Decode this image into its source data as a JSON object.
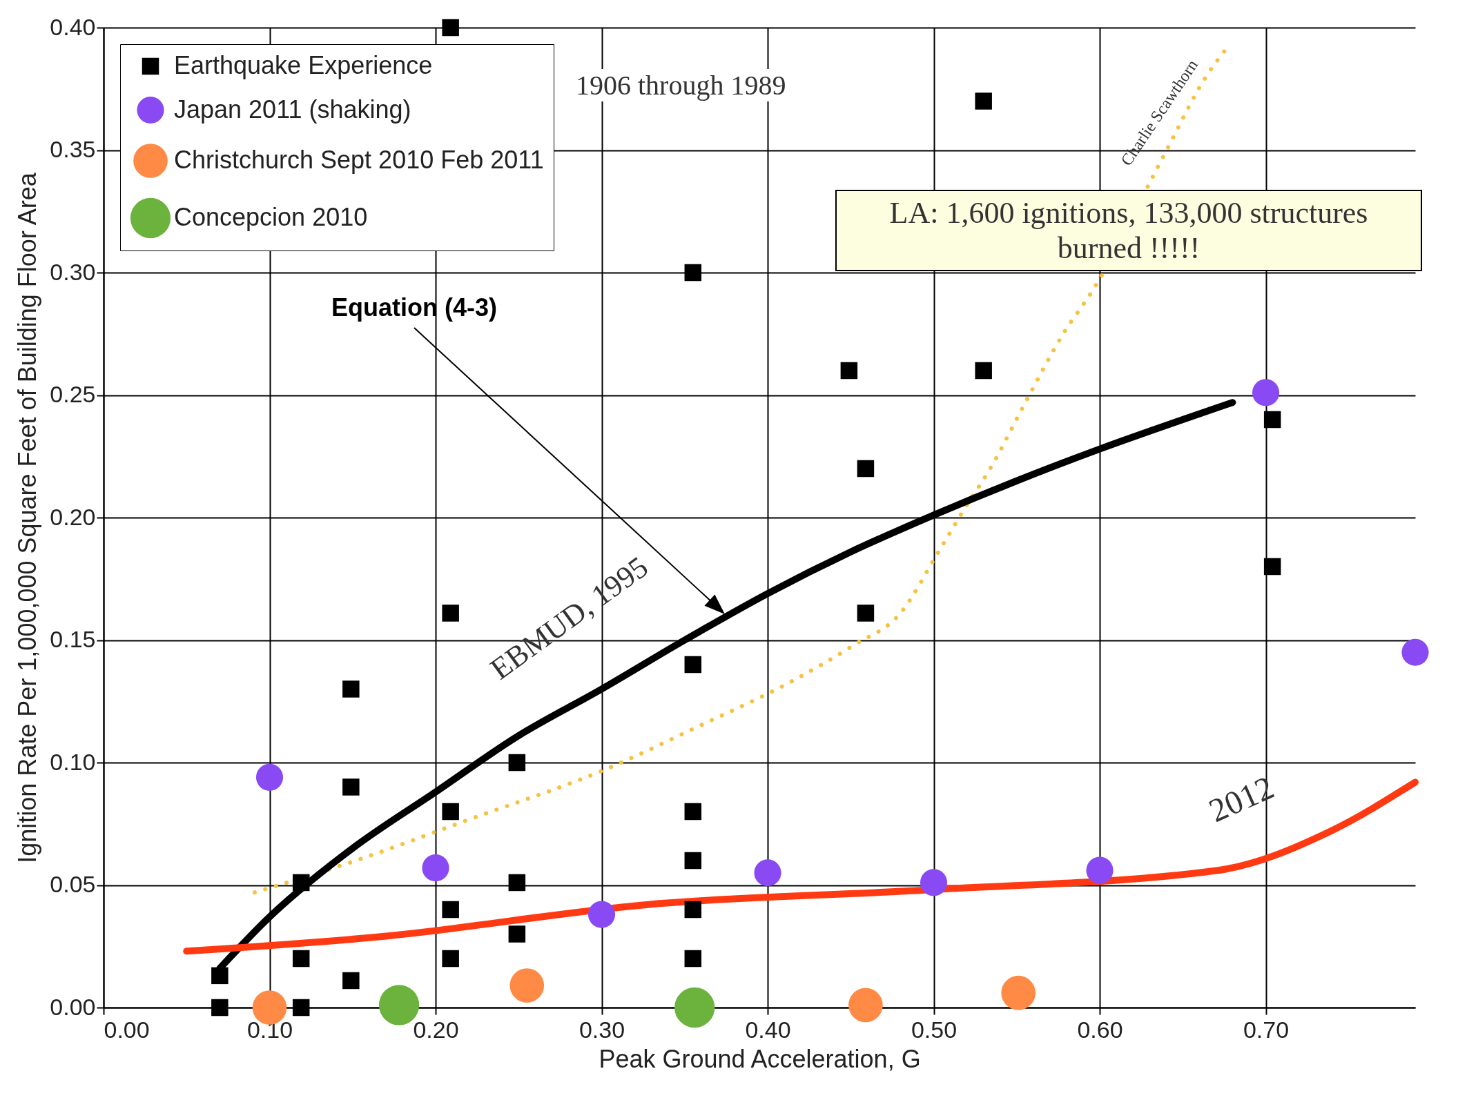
{
  "chart_data": {
    "type": "scatter",
    "xlabel": "Peak Ground Acceleration, G",
    "ylabel": "Ignition Rate Per 1,000,000 Square Feet of Building Floor Area",
    "xlim": [
      0,
      0.79
    ],
    "xticks": [
      {
        "value": 0,
        "label": "0.00"
      },
      {
        "value": 0.1,
        "label": "0.10"
      },
      {
        "value": 0.2,
        "label": "0.20"
      },
      {
        "value": 0.3,
        "label": "0.30"
      },
      {
        "value": 0.4,
        "label": "0.40"
      },
      {
        "value": 0.5,
        "label": "0.50"
      },
      {
        "value": 0.6,
        "label": "0.60"
      },
      {
        "value": 0.7,
        "label": "0.70"
      }
    ],
    "ylim": [
      0,
      0.4
    ],
    "yticks": [
      {
        "value": 0,
        "label": "0.00"
      },
      {
        "value": 0.05,
        "label": "0.05"
      },
      {
        "value": 0.1,
        "label": "0.10"
      },
      {
        "value": 0.15,
        "label": "0.15"
      },
      {
        "value": 0.2,
        "label": "0.20"
      },
      {
        "value": 0.25,
        "label": "0.25"
      },
      {
        "value": 0.3,
        "label": "0.30"
      },
      {
        "value": 0.35,
        "label": "0.35"
      },
      {
        "value": 0.4,
        "label": "0.40"
      }
    ],
    "grid": true,
    "legend": "top left",
    "series": [
      {
        "type": "line",
        "line_style": "dotted",
        "color": "#f5c242",
        "x": [
          0.091,
          0.152,
          0.217,
          0.305,
          0.359,
          0.414,
          0.452,
          0.48,
          0.502,
          0.518,
          0.534,
          0.556,
          0.578,
          0.596,
          0.638,
          0.665,
          0.677
        ],
        "values": [
          0.047,
          0.06,
          0.076,
          0.098,
          0.115,
          0.133,
          0.148,
          0.161,
          0.185,
          0.203,
          0.22,
          0.248,
          0.275,
          0.293,
          0.347,
          0.381,
          0.392
        ]
      },
      {
        "type": "line",
        "line_style": "solid",
        "color": "#000000",
        "x": [
          0.07,
          0.1,
          0.15,
          0.2,
          0.25,
          0.3,
          0.35,
          0.4,
          0.45,
          0.5,
          0.55,
          0.6,
          0.65,
          0.68
        ],
        "values": [
          0.016,
          0.037,
          0.065,
          0.088,
          0.111,
          0.13,
          0.15,
          0.169,
          0.186,
          0.201,
          0.215,
          0.228,
          0.24,
          0.247
        ]
      },
      {
        "type": "line",
        "line_style": "solid",
        "color": "#ff3a12",
        "x": [
          0.05,
          0.168,
          0.327,
          0.496,
          0.671,
          0.739,
          0.79
        ],
        "values": [
          0.023,
          0.029,
          0.042,
          0.048,
          0.056,
          0.072,
          0.092
        ]
      },
      {
        "marker": "square",
        "name": "Earthquake Experience",
        "color": "#000000",
        "x": [
          0.07,
          0.07,
          0.119,
          0.119,
          0.119,
          0.149,
          0.149,
          0.149,
          0.209,
          0.209,
          0.209,
          0.209,
          0.209,
          0.249,
          0.249,
          0.249,
          0.355,
          0.355,
          0.355,
          0.355,
          0.355,
          0.355,
          0.449,
          0.459,
          0.459,
          0.53,
          0.53,
          0.704,
          0.704
        ],
        "values": [
          0.013,
          0,
          0.051,
          0.02,
          0,
          0.13,
          0.09,
          0.011,
          0.4,
          0.161,
          0.08,
          0.04,
          0.02,
          0.1,
          0.051,
          0.03,
          0.3,
          0.14,
          0.08,
          0.06,
          0.04,
          0.02,
          0.26,
          0.22,
          0.161,
          0.37,
          0.26,
          0.24,
          0.18
        ]
      },
      {
        "marker": "circle",
        "name": "Japan 2011 (shaking)",
        "color": "#8a4af3",
        "x": [
          0.1,
          0.2,
          0.3,
          0.4,
          0.5,
          0.6,
          0.7,
          0.79
        ],
        "values": [
          0.094,
          0.057,
          0.038,
          0.055,
          0.051,
          0.056,
          0.251,
          0.145
        ]
      },
      {
        "marker": "circle",
        "name": "Christchurch Sept 2010 Feb 2011",
        "color": "#ff8a45",
        "x": [
          0.1,
          0.255,
          0.459,
          0.551
        ],
        "values": [
          0,
          0.009,
          0.001,
          0.006
        ]
      },
      {
        "marker": "circle",
        "name": "Concepcion 2010",
        "color": "#6cb33e",
        "x": [
          0.178,
          0.356
        ],
        "values": [
          0.001,
          0
        ]
      }
    ],
    "annotations": [
      "1906 through 1989",
      "LA: 1,600 ignitions, 133,000 structures burned !!!!!",
      "Equation (4-3)",
      "EBMUD, 1995",
      "2012",
      "Charlie Scawthorn"
    ]
  }
}
